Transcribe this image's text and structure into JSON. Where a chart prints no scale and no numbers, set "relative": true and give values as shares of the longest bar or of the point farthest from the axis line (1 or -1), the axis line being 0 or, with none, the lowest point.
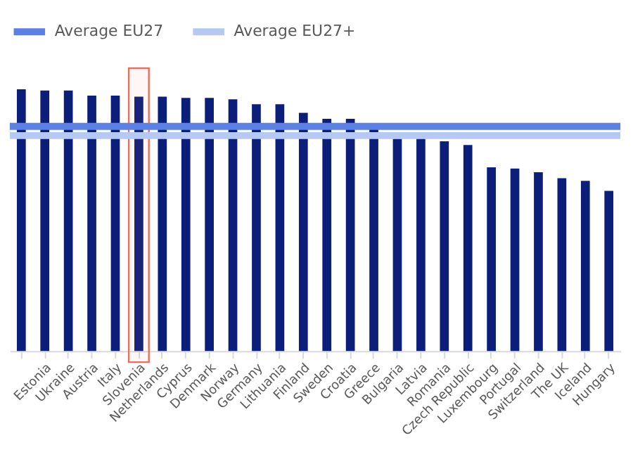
{
  "chart_data": {
    "type": "bar",
    "relative": true,
    "categories": [
      null,
      "Estonia",
      "Ukraine",
      "Austria",
      "Italy",
      "Slovenia",
      "Netherlands",
      "Cyprus",
      "Denmark",
      "Norway",
      "Germany",
      "Lithuania",
      "Finland",
      "Sweden",
      "Croatia",
      "Greece",
      "Bulgaria",
      "Latvia",
      "Romania",
      "Czech Republic",
      "Luxembourg",
      "Portugal",
      "Switzerland",
      "The UK",
      "Iceland",
      "Hungary"
    ],
    "values": [
      1,
      0.995,
      0.995,
      0.976,
      0.976,
      0.972,
      0.972,
      0.967,
      0.967,
      0.962,
      0.943,
      0.943,
      0.91,
      0.887,
      0.887,
      0.863,
      0.811,
      0.811,
      0.801,
      0.787,
      0.702,
      0.697,
      0.683,
      0.66,
      0.65,
      0.612
    ],
    "color": "#0b1f7a",
    "ref_lines": [
      {
        "axis": "y",
        "value": 0.858,
        "label": "Average EU27",
        "color": "#5b80e6"
      },
      {
        "axis": "y",
        "value": 0.823,
        "label": "Average EU27+",
        "color": "#b6c9f5"
      }
    ],
    "bands": [
      {
        "axis": "x",
        "from": "Slovenia",
        "to": "Slovenia",
        "color": "#e8705f"
      }
    ],
    "legend": "top"
  }
}
